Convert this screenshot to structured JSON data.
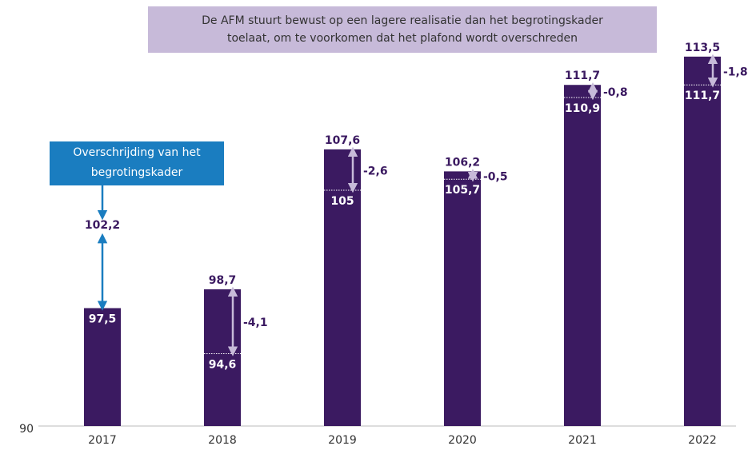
{
  "chart_data": {
    "type": "bar",
    "annotation": [
      "De AFM stuurt bewust op een lagere realisatie dan het begrotingskader",
      "toelaat, om te voorkomen dat het plafond wordt overschreden"
    ],
    "callout": [
      "Overschrijding van het",
      "begrotingskader"
    ],
    "categories": [
      "2017",
      "2018",
      "2019",
      "2020",
      "2021",
      "2022"
    ],
    "kader": {
      "color": "#3b1a61",
      "values": [
        97.5,
        98.7,
        107.6,
        106.2,
        111.7,
        113.5
      ],
      "value_labels": [
        "97,5",
        "98,7",
        "107,6",
        "106,2",
        "111,7",
        "113,5"
      ]
    },
    "realisatie": {
      "values": [
        102.2,
        94.6,
        105,
        105.7,
        110.9,
        111.7
      ],
      "value_labels": [
        "102,2",
        "94,6",
        "105",
        "105,7",
        "110,9",
        "111,7"
      ]
    },
    "differences": {
      "color": "#c7bad9",
      "values": [
        null,
        -4.1,
        -2.6,
        -0.5,
        -0.8,
        -1.8
      ],
      "value_labels": [
        null,
        "-4,1",
        "-2,6",
        "-0,5",
        "-0,8",
        "-1,8"
      ]
    },
    "overshoot_color": "#1a7dc0",
    "ylim": [
      90,
      117
    ],
    "yticks": [
      90
    ]
  }
}
